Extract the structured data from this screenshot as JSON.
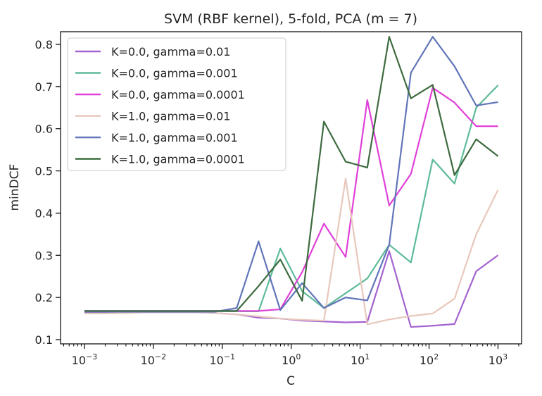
{
  "chart_data": {
    "type": "line",
    "title": "SVM (RBF kernel), 5-fold, PCA (m = 7)",
    "xlabel": "C",
    "ylabel": "minDCF",
    "x_scale": "log",
    "xlim": [
      0.00045,
      2200
    ],
    "ylim": [
      0.09,
      0.83
    ],
    "x_ticks": [
      {
        "value": 0.001,
        "base": "10",
        "exp": "−3"
      },
      {
        "value": 0.01,
        "base": "10",
        "exp": "−2"
      },
      {
        "value": 0.1,
        "base": "10",
        "exp": "−1"
      },
      {
        "value": 1,
        "base": "10",
        "exp": "0"
      },
      {
        "value": 10,
        "base": "10",
        "exp": "1"
      },
      {
        "value": 100,
        "base": "10",
        "exp": "2"
      },
      {
        "value": 1000,
        "base": "10",
        "exp": "3"
      }
    ],
    "y_ticks": [
      0.1,
      0.2,
      0.3,
      0.4,
      0.5,
      0.6,
      0.7,
      0.8
    ],
    "y_tick_labels": [
      "0.1",
      "0.2",
      "0.3",
      "0.4",
      "0.5",
      "0.6",
      "0.7",
      "0.8"
    ],
    "x": [
      0.001,
      0.00207,
      0.00428,
      0.00886,
      0.0183,
      0.0379,
      0.0785,
      0.162,
      0.336,
      0.695,
      1.44,
      2.98,
      6.16,
      12.7,
      26.4,
      54.6,
      113,
      234,
      483,
      1000
    ],
    "legend_position": "upper left",
    "grid": false,
    "series": [
      {
        "name": "K=0.0, gamma=0.01",
        "color": "#a463d0",
        "values": [
          0.165,
          0.165,
          0.165,
          0.165,
          0.165,
          0.165,
          0.163,
          0.16,
          0.152,
          0.15,
          0.145,
          0.143,
          0.141,
          0.142,
          0.31,
          0.13,
          0.133,
          0.137,
          0.262,
          0.3
        ]
      },
      {
        "name": "K=0.0, gamma=0.001",
        "color": "#5ebb98",
        "values": [
          0.168,
          0.167,
          0.167,
          0.167,
          0.167,
          0.167,
          0.167,
          0.167,
          0.167,
          0.316,
          0.215,
          0.175,
          0.21,
          0.245,
          0.325,
          0.283,
          0.527,
          0.47,
          0.65,
          0.703
        ]
      },
      {
        "name": "K=0.0, gamma=0.0001",
        "color": "#e040d8",
        "values": [
          0.168,
          0.168,
          0.168,
          0.168,
          0.168,
          0.168,
          0.168,
          0.168,
          0.168,
          0.172,
          0.26,
          0.375,
          0.296,
          0.668,
          0.418,
          0.493,
          0.697,
          0.662,
          0.606,
          0.606
        ]
      },
      {
        "name": "K=1.0, gamma=0.01",
        "color": "#e8c8bc",
        "values": [
          0.162,
          0.162,
          0.163,
          0.165,
          0.165,
          0.165,
          0.163,
          0.16,
          0.155,
          0.15,
          0.147,
          0.145,
          0.482,
          0.136,
          0.148,
          0.156,
          0.162,
          0.197,
          0.35,
          0.455
        ]
      },
      {
        "name": "K=1.0, gamma=0.001",
        "color": "#6275b8",
        "values": [
          0.166,
          0.166,
          0.166,
          0.166,
          0.166,
          0.166,
          0.166,
          0.175,
          0.333,
          0.17,
          0.234,
          0.175,
          0.2,
          0.193,
          0.325,
          0.733,
          0.818,
          0.748,
          0.655,
          0.663
        ]
      },
      {
        "name": "K=1.0, gamma=0.0001",
        "color": "#3d6b3f",
        "values": [
          0.168,
          0.168,
          0.168,
          0.168,
          0.168,
          0.168,
          0.168,
          0.168,
          0.227,
          0.29,
          0.192,
          0.617,
          0.522,
          0.508,
          0.818,
          0.672,
          0.704,
          0.49,
          0.575,
          0.535
        ]
      }
    ]
  }
}
